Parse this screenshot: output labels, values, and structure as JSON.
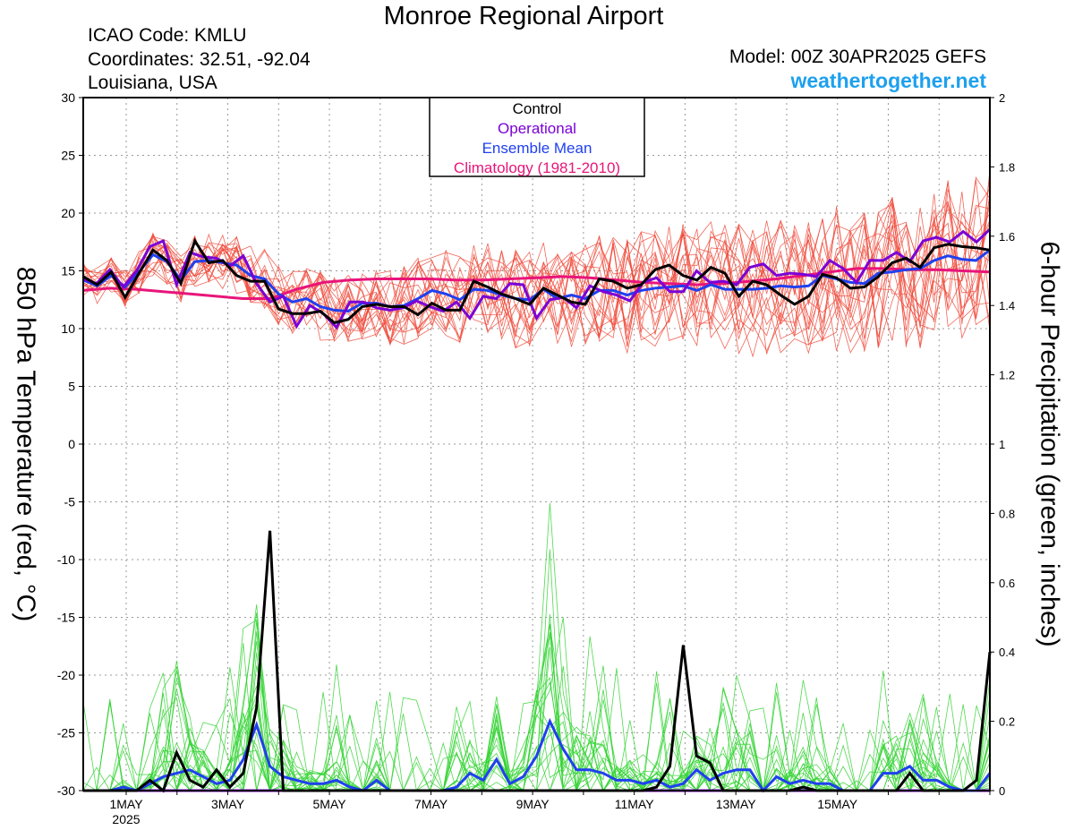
{
  "header": {
    "title": "Monroe Regional Airport",
    "icao": "ICAO Code: KMLU",
    "coordinates": "Coordinates: 32.51, -92.04",
    "region": "Louisiana, USA",
    "model": "Model: 00Z 30APR2025 GEFS",
    "site": "weathertogether.net"
  },
  "colors": {
    "members_temp": "#f04b3c",
    "members_precip": "#2fd22f",
    "control": "#000000",
    "operational": "#7a00d6",
    "ensemble_mean": "#2040ee",
    "climatology": "#e8157a",
    "site": "#1ea0ee"
  },
  "chart_data": {
    "type": "line",
    "ylabel_left": "850 hPa Temperature (red, °C)",
    "ylabel_right": "6-hour Precipitation (green, inches)",
    "y_left_ticks": [
      "30",
      "25",
      "20",
      "15",
      "10",
      "5",
      "0",
      "-5",
      "-10",
      "-15",
      "-20",
      "-25",
      "-30"
    ],
    "y_right_ticks": [
      "2",
      "1.8",
      "1.6",
      "1.4",
      "1.2",
      "1",
      "0.8",
      "0.6",
      "0.4",
      "0.2",
      "0"
    ],
    "ylim_left": [
      -30,
      30
    ],
    "ylim_right": [
      0,
      2
    ],
    "x_ticks": [
      "1MAY",
      "3MAY",
      "5MAY",
      "7MAY",
      "9MAY",
      "11MAY",
      "13MAY",
      "15MAY"
    ],
    "x_year": "2025",
    "grid": true,
    "legend": {
      "position": "top-center",
      "entries": [
        "Control",
        "Operational",
        "Ensemble Mean",
        "Climatology (1981-2010)"
      ]
    },
    "temperature": {
      "control": [
        14.5,
        13.8,
        14.9,
        12.7,
        14.8,
        16.8,
        15.9,
        13.9,
        17.6,
        15.7,
        15.9,
        14.6,
        14.1,
        14.1,
        11.7,
        11.3,
        11.3,
        11.5,
        10.5,
        10.8,
        11.9,
        12.1,
        11.9,
        11.9,
        11.2,
        12.2,
        11.6,
        11.6,
        14.1,
        13.6,
        13.0,
        12.6,
        12.1,
        13.5,
        12.9,
        12.3,
        12.1,
        14.3,
        14.1,
        13.5,
        13.8,
        15.1,
        15.5,
        14.6,
        14.2,
        15.3,
        14.8,
        12.8,
        14.1,
        13.8,
        12.9,
        12.1,
        12.8,
        14.7,
        14.4,
        13.5,
        13.6,
        14.5,
        15.7,
        16.1,
        15.3,
        17.0,
        17.3,
        17.1,
        17.0,
        16.8
      ],
      "operational": [
        14.3,
        13.9,
        15.1,
        13.6,
        15.0,
        17.1,
        17.6,
        13.8,
        16.6,
        16.2,
        16.1,
        15.4,
        16.3,
        13.9,
        12.3,
        12.8,
        10.2,
        12.0,
        11.3,
        10.1,
        12.3,
        12.3,
        11.8,
        11.6,
        11.8,
        12.4,
        11.9,
        11.5,
        12.3,
        10.9,
        12.8,
        12.6,
        13.9,
        13.8,
        10.9,
        12.5,
        12.7,
        11.8,
        13.7,
        13.2,
        12.9,
        12.4,
        14.0,
        14.4,
        13.2,
        13.2,
        15.0,
        14.0,
        14.1,
        13.8,
        15.3,
        15.6,
        14.6,
        14.8,
        14.7,
        14.5,
        15.9,
        15.2,
        14.0,
        15.9,
        15.9,
        16.6,
        15.8,
        17.6,
        17.9,
        17.5,
        18.4,
        17.5,
        18.6
      ],
      "ensemble_mean": [
        14.2,
        13.7,
        14.6,
        13.6,
        14.9,
        16.4,
        15.8,
        14.2,
        15.8,
        15.9,
        15.7,
        15.5,
        14.6,
        14.3,
        13.0,
        12.3,
        12.6,
        11.9,
        11.6,
        11.5,
        12.2,
        12.2,
        11.9,
        12.0,
        12.6,
        13.3,
        13.0,
        12.5,
        13.4,
        13.3,
        12.9,
        12.6,
        12.5,
        13.4,
        12.6,
        12.9,
        12.6,
        13.3,
        13.3,
        12.9,
        13.3,
        13.5,
        13.6,
        13.7,
        13.3,
        13.8,
        13.4,
        13.4,
        13.4,
        13.5,
        13.7,
        13.6,
        13.7,
        14.6,
        14.3,
        14.0,
        13.9,
        14.8,
        14.9,
        15.1,
        15.2,
        15.9,
        16.3,
        16.0,
        15.9,
        16.8
      ],
      "climatology": [
        13.3,
        13.5,
        13.4,
        13.2,
        13.0,
        12.8,
        12.6,
        12.6,
        13.4,
        14.0,
        14.2,
        14.3,
        14.3,
        14.3,
        14.2,
        14.2,
        14.3,
        14.4,
        14.5,
        14.4,
        14.2,
        14.0,
        13.9,
        13.8,
        13.9,
        14.1,
        14.3,
        14.6,
        14.9,
        15.2,
        15.2,
        15.1,
        15.1,
        15.0,
        14.9
      ]
    },
    "precipitation": {
      "control": [
        0,
        0,
        0,
        0,
        0,
        0.03,
        0,
        0.11,
        0.03,
        0.01,
        0.06,
        0.01,
        0.05,
        0.24,
        0.75,
        0,
        0,
        0,
        0,
        0,
        0,
        0,
        0,
        0,
        0,
        0,
        0,
        0,
        0,
        0,
        0,
        0,
        0,
        0,
        0,
        0,
        0,
        0,
        0,
        0,
        0,
        0,
        0,
        0.01,
        0.07,
        0.42,
        0.1,
        0.08,
        0,
        0,
        0,
        0,
        0,
        0,
        0.01,
        0,
        0,
        0,
        0,
        0,
        0,
        0,
        0.05,
        0,
        0,
        0,
        0,
        0.03,
        0.4
      ],
      "operational": [
        0,
        0,
        0,
        0,
        0,
        0,
        0,
        0,
        0,
        0,
        0,
        0,
        0,
        0,
        0,
        0,
        0,
        0,
        0,
        0,
        0,
        0,
        0,
        0,
        0,
        0,
        0,
        0,
        0,
        0,
        0,
        0,
        0,
        0,
        0,
        0,
        0,
        0,
        0,
        0,
        0,
        0,
        0,
        0,
        0,
        0,
        0,
        0,
        0,
        0,
        0,
        0,
        0,
        0,
        0,
        0,
        0,
        0,
        0,
        0,
        0,
        0,
        0,
        0,
        0,
        0,
        0,
        0,
        0
      ],
      "ensemble_mean": [
        0,
        0,
        0,
        0.01,
        0,
        0.02,
        0.04,
        0.05,
        0.06,
        0.04,
        0.02,
        0.03,
        0.09,
        0.19,
        0.07,
        0.04,
        0.03,
        0.02,
        0.02,
        0.03,
        0.01,
        0,
        0.03,
        0,
        0,
        0,
        0,
        0,
        0.01,
        0.05,
        0.03,
        0.09,
        0.02,
        0.04,
        0.1,
        0.2,
        0.12,
        0.06,
        0.06,
        0.05,
        0.03,
        0.03,
        0.02,
        0.03,
        0.01,
        0.02,
        0.06,
        0.03,
        0.05,
        0.06,
        0.06,
        0,
        0.04,
        0.02,
        0.03,
        0.02,
        0.02,
        0,
        0,
        0,
        0.05,
        0.05,
        0.07,
        0.03,
        0.03,
        0.01,
        0,
        0,
        0.05
      ]
    }
  }
}
